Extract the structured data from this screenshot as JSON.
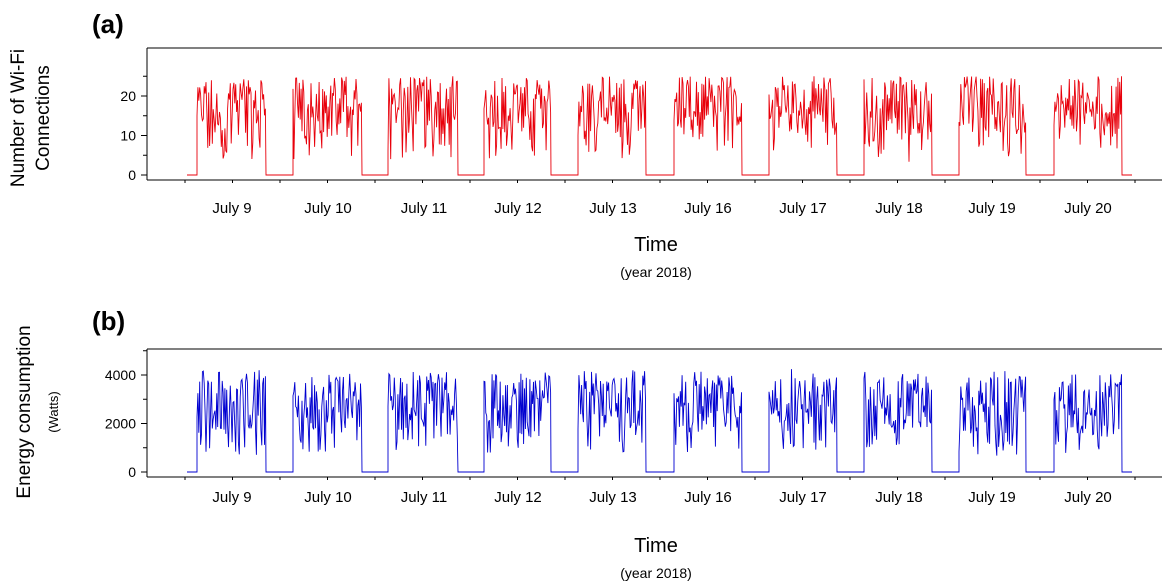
{
  "chart_data": [
    {
      "type": "line",
      "panel_label": "(a)",
      "title": "",
      "xlabel": "Time",
      "xlabel_sub": "(year 2018)",
      "ylabel_lines": [
        "Number of Wi-Fi",
        "Connections"
      ],
      "ylim": [
        0,
        25
      ],
      "yticks": [
        0,
        10,
        20
      ],
      "categories": [
        "July 9",
        "July 10",
        "July 11",
        "July 12",
        "July 13",
        "July 16",
        "July 17",
        "July 18",
        "July 19",
        "July 20"
      ],
      "series": [
        {
          "color": "#e8000b",
          "segments": [
            {
              "x": [
                "July 9",
                "July 10",
                "July 11",
                "July 12",
                "July 13",
                "July 16",
                "July 17",
                "July 18",
                "July 19",
                "July 20"
              ],
              "range": [
                [
                  4,
                  25
                ],
                [
                  4,
                  25
                ],
                [
                  4,
                  25
                ],
                [
                  4,
                  25
                ],
                [
                  3,
                  25
                ],
                [
                  5,
                  25
                ],
                [
                  5,
                  25
                ],
                [
                  3,
                  25
                ],
                [
                  4,
                  25
                ],
                [
                  6,
                  25
                ]
              ],
              "typical": [
                17,
                16,
                17,
                17,
                16,
                17,
                16,
                16,
                16,
                17
              ],
              "off_hours_value": 0
            }
          ]
        }
      ],
      "grid": false
    },
    {
      "type": "line",
      "panel_label": "(b)",
      "title": "",
      "xlabel": "Time",
      "xlabel_sub": "(year 2018)",
      "ylabel_main": "Energy consumption",
      "ylabel_unit": "(Watts)",
      "ylim": [
        0,
        5000
      ],
      "yticks": [
        0,
        2000,
        4000
      ],
      "categories": [
        "July 9",
        "July 10",
        "July 11",
        "July 12",
        "July 13",
        "July 16",
        "July 17",
        "July 18",
        "July 19",
        "July 20"
      ],
      "series": [
        {
          "color": "#0000d0",
          "segments": [
            {
              "x": [
                "July 9",
                "July 10",
                "July 11",
                "July 12",
                "July 13",
                "July 16",
                "July 17",
                "July 18",
                "July 19",
                "July 20"
              ],
              "range": [
                [
                  700,
                  4200
                ],
                [
                  800,
                  4100
                ],
                [
                  800,
                  4200
                ],
                [
                  700,
                  4100
                ],
                [
                  800,
                  4200
                ],
                [
                  700,
                  4200
                ],
                [
                  800,
                  4300
                ],
                [
                  700,
                  4200
                ],
                [
                  600,
                  4200
                ],
                [
                  700,
                  4100
                ]
              ],
              "typical": [
                2600,
                2600,
                2600,
                2600,
                2600,
                2700,
                2700,
                2700,
                2500,
                2600
              ],
              "off_hours_value": 0
            }
          ]
        }
      ],
      "grid": false
    }
  ]
}
